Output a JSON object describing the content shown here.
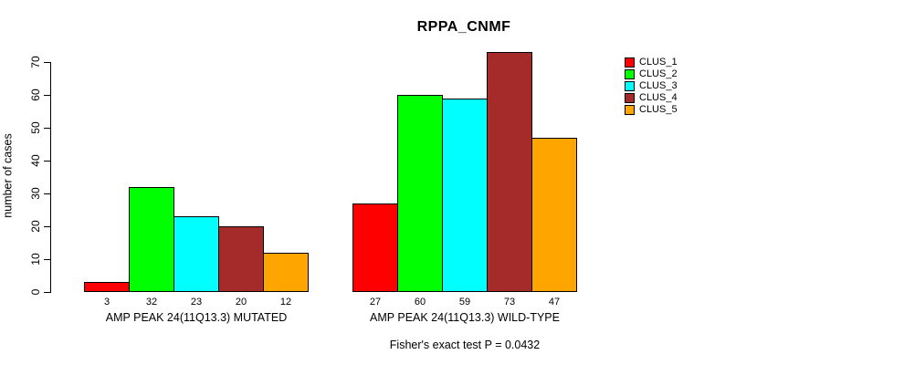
{
  "chart_data": {
    "type": "bar",
    "title": "RPPA_CNMF",
    "ylabel": "number of cases",
    "xlabel": "",
    "footnote": "Fisher's exact test P = 0.0432",
    "ylim": [
      0,
      70
    ],
    "yticks": [
      0,
      10,
      20,
      30,
      40,
      50,
      60,
      70
    ],
    "grid": false,
    "legend_position": "right",
    "bar_value_labels_shown": true,
    "series": [
      {
        "name": "CLUS_1",
        "color": "#ff0000"
      },
      {
        "name": "CLUS_2",
        "color": "#00ff00"
      },
      {
        "name": "CLUS_3",
        "color": "#00ffff"
      },
      {
        "name": "CLUS_4",
        "color": "#a52a2a"
      },
      {
        "name": "CLUS_5",
        "color": "#ffa500"
      }
    ],
    "groups": [
      {
        "label": "AMP PEAK 24(11Q13.3) MUTATED",
        "values": [
          3,
          32,
          23,
          20,
          12
        ]
      },
      {
        "label": "AMP PEAK 24(11Q13.3) WILD-TYPE",
        "values": [
          27,
          60,
          59,
          73,
          47
        ]
      }
    ]
  }
}
